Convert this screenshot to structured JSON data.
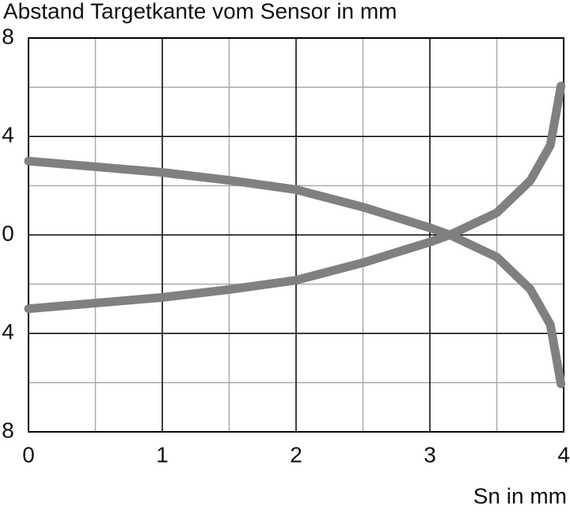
{
  "chart_data": {
    "type": "line",
    "title": "Abstand Targetkante vom Sensor in mm",
    "x_label": "Sn in mm",
    "x": [
      0,
      0.5,
      1,
      1.5,
      2,
      2.5,
      3,
      3.15,
      3.5,
      3.75,
      3.9,
      3.98
    ],
    "series": [
      {
        "color": "#808080",
        "values": [
          3,
          2.77,
          2.54,
          2.22,
          1.84,
          1.13,
          0.29,
          0,
          -0.9,
          -2.2,
          -3.64,
          -6.05
        ]
      },
      {
        "color": "#808080",
        "values": [
          -3,
          -2.77,
          -2.54,
          -2.22,
          -1.84,
          -1.13,
          -0.29,
          0,
          0.9,
          2.2,
          3.64,
          6.05
        ]
      }
    ],
    "xlim": [
      0,
      4
    ],
    "xticks": [
      0,
      1,
      2,
      3,
      4
    ],
    "ylim": [
      -8,
      8
    ],
    "yticks": [
      {
        "value": -8,
        "label": "8"
      },
      {
        "value": -4,
        "label": "4"
      },
      0,
      4,
      8
    ],
    "grid": true
  }
}
